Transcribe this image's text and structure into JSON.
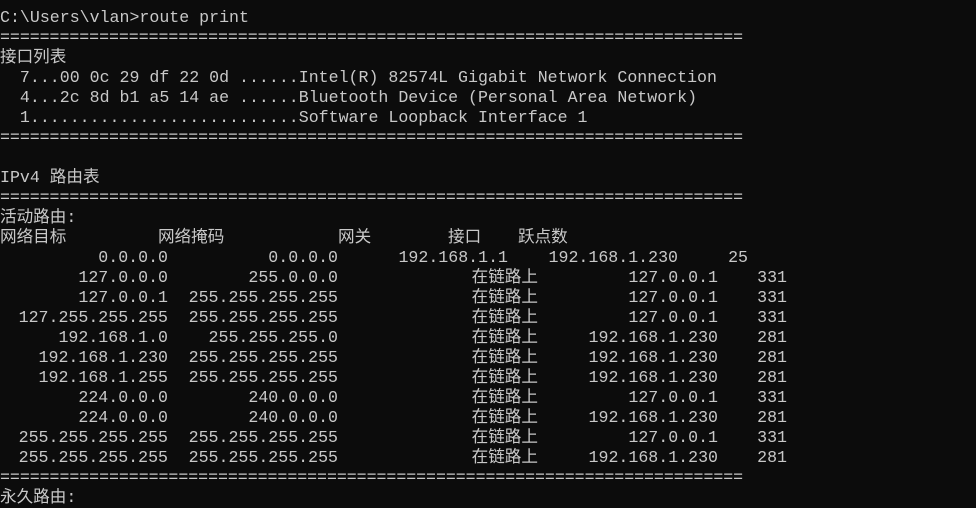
{
  "console": {
    "prompt": "C:\\Users\\vlan>route print",
    "separator": "===========================================================================",
    "interface_list_title": "接口列表",
    "interfaces": [
      "  7...00 0c 29 df 22 0d ......Intel(R) 82574L Gigabit Network Connection",
      "  4...2c 8d b1 a5 14 ae ......Bluetooth Device (Personal Area Network)",
      "  1...........................Software Loopback Interface 1"
    ],
    "ipv4_title": "IPv4 路由表",
    "active_routes_title": "活动路由:",
    "headers": {
      "dest": "网络目标",
      "mask": "网络掩码",
      "gateway": "网关",
      "iface": "接口",
      "metric": "跃点数"
    },
    "routes": [
      [
        "0.0.0.0",
        "0.0.0.0",
        "192.168.1.1",
        "192.168.1.230",
        "25"
      ],
      [
        "127.0.0.0",
        "255.0.0.0",
        "在链路上",
        "127.0.0.1",
        "331"
      ],
      [
        "127.0.0.1",
        "255.255.255.255",
        "在链路上",
        "127.0.0.1",
        "331"
      ],
      [
        "127.255.255.255",
        "255.255.255.255",
        "在链路上",
        "127.0.0.1",
        "331"
      ],
      [
        "192.168.1.0",
        "255.255.255.0",
        "在链路上",
        "192.168.1.230",
        "281"
      ],
      [
        "192.168.1.230",
        "255.255.255.255",
        "在链路上",
        "192.168.1.230",
        "281"
      ],
      [
        "192.168.1.255",
        "255.255.255.255",
        "在链路上",
        "192.168.1.230",
        "281"
      ],
      [
        "224.0.0.0",
        "240.0.0.0",
        "在链路上",
        "127.0.0.1",
        "331"
      ],
      [
        "224.0.0.0",
        "240.0.0.0",
        "在链路上",
        "192.168.1.230",
        "281"
      ],
      [
        "255.255.255.255",
        "255.255.255.255",
        "在链路上",
        "127.0.0.1",
        "331"
      ],
      [
        "255.255.255.255",
        "255.255.255.255",
        "在链路上",
        "192.168.1.230",
        "281"
      ]
    ],
    "persistent_routes_title": "永久路由:"
  },
  "colors": {
    "background": "#0c0c0c",
    "text": "#c8c8c8"
  }
}
